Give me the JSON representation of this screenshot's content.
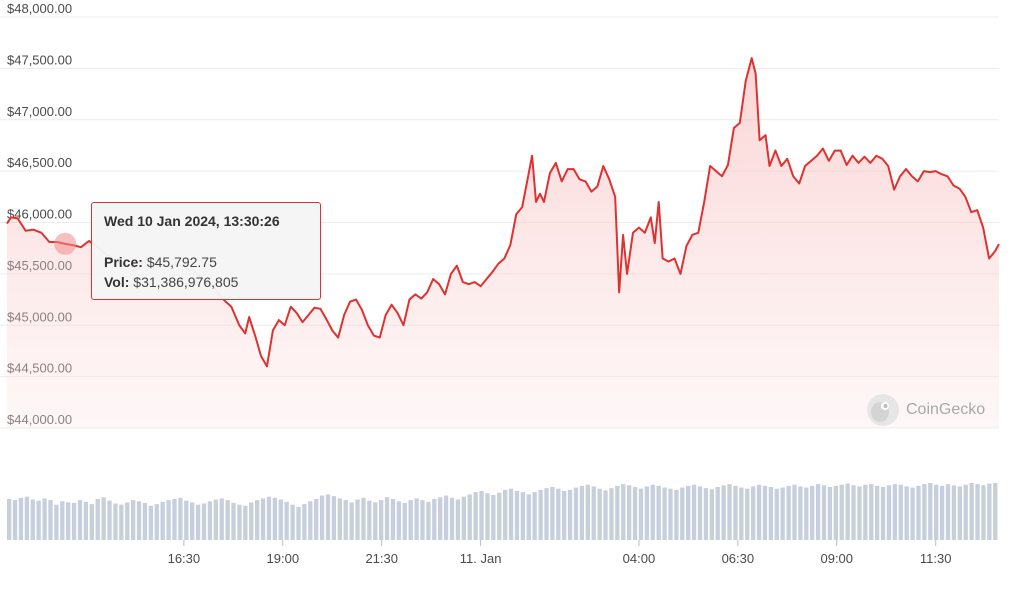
{
  "chart_data": {
    "type": "line",
    "title": "",
    "xlabel": "",
    "ylabel": "",
    "ylim": [
      44000,
      48000
    ],
    "y_ticks": [
      "$48,000.00",
      "$47,500.00",
      "$47,000.00",
      "$46,500.00",
      "$46,000.00",
      "$45,500.00",
      "$45,000.00",
      "$44,500.00",
      "$44,000.00"
    ],
    "y_tick_values": [
      48000,
      47500,
      47000,
      46500,
      46000,
      45500,
      45000,
      44500,
      44000
    ],
    "x_ticks": [
      "16:30",
      "19:00",
      "21:30",
      "11. Jan",
      "04:00",
      "06:30",
      "09:00",
      "11:30"
    ],
    "x_tick_hours": [
      16.5,
      19.0,
      21.5,
      24.0,
      28.0,
      30.5,
      33.0,
      35.5
    ],
    "x_unit": "hours since 10 Jan 2024 00:00",
    "series": [
      {
        "name": "Price",
        "color": "#e03131",
        "points": [
          [
            12.03,
            45990
          ],
          [
            12.13,
            46050
          ],
          [
            12.3,
            46040
          ],
          [
            12.5,
            45920
          ],
          [
            12.7,
            45930
          ],
          [
            12.9,
            45900
          ],
          [
            13.1,
            45810
          ],
          [
            13.3,
            45810
          ],
          [
            13.5,
            45792
          ],
          [
            13.7,
            45780
          ],
          [
            13.9,
            45760
          ],
          [
            14.1,
            45820
          ],
          [
            14.3,
            45770
          ],
          [
            14.5,
            45700
          ],
          [
            14.7,
            45650
          ],
          [
            14.9,
            45600
          ],
          [
            15.1,
            45580
          ],
          [
            15.3,
            45550
          ],
          [
            15.5,
            45620
          ],
          [
            15.7,
            45560
          ],
          [
            15.9,
            45600
          ],
          [
            16.1,
            45570
          ],
          [
            16.3,
            45600
          ],
          [
            16.5,
            45570
          ],
          [
            16.7,
            45540
          ],
          [
            16.9,
            45480
          ],
          [
            17.1,
            45420
          ],
          [
            17.3,
            45350
          ],
          [
            17.5,
            45250
          ],
          [
            17.7,
            45180
          ],
          [
            17.9,
            45000
          ],
          [
            18.05,
            44920
          ],
          [
            18.15,
            45080
          ],
          [
            18.3,
            44900
          ],
          [
            18.45,
            44700
          ],
          [
            18.6,
            44600
          ],
          [
            18.75,
            44950
          ],
          [
            18.9,
            45050
          ],
          [
            19.05,
            45000
          ],
          [
            19.2,
            45180
          ],
          [
            19.35,
            45120
          ],
          [
            19.5,
            45030
          ],
          [
            19.65,
            45100
          ],
          [
            19.8,
            45170
          ],
          [
            19.95,
            45160
          ],
          [
            20.1,
            45060
          ],
          [
            20.25,
            44950
          ],
          [
            20.4,
            44880
          ],
          [
            20.55,
            45100
          ],
          [
            20.7,
            45230
          ],
          [
            20.85,
            45250
          ],
          [
            21.0,
            45150
          ],
          [
            21.15,
            45000
          ],
          [
            21.3,
            44900
          ],
          [
            21.45,
            44880
          ],
          [
            21.6,
            45100
          ],
          [
            21.75,
            45200
          ],
          [
            21.9,
            45120
          ],
          [
            22.05,
            45000
          ],
          [
            22.2,
            45250
          ],
          [
            22.35,
            45300
          ],
          [
            22.5,
            45260
          ],
          [
            22.65,
            45320
          ],
          [
            22.8,
            45450
          ],
          [
            22.95,
            45400
          ],
          [
            23.1,
            45300
          ],
          [
            23.25,
            45500
          ],
          [
            23.4,
            45580
          ],
          [
            23.55,
            45420
          ],
          [
            23.7,
            45400
          ],
          [
            23.85,
            45420
          ],
          [
            24.0,
            45380
          ],
          [
            24.15,
            45450
          ],
          [
            24.3,
            45520
          ],
          [
            24.45,
            45600
          ],
          [
            24.6,
            45650
          ],
          [
            24.75,
            45780
          ],
          [
            24.9,
            46080
          ],
          [
            25.05,
            46150
          ],
          [
            25.2,
            46450
          ],
          [
            25.3,
            46650
          ],
          [
            25.4,
            46200
          ],
          [
            25.5,
            46280
          ],
          [
            25.6,
            46200
          ],
          [
            25.75,
            46480
          ],
          [
            25.9,
            46580
          ],
          [
            26.05,
            46400
          ],
          [
            26.2,
            46520
          ],
          [
            26.35,
            46520
          ],
          [
            26.5,
            46420
          ],
          [
            26.65,
            46400
          ],
          [
            26.8,
            46300
          ],
          [
            26.95,
            46350
          ],
          [
            27.1,
            46550
          ],
          [
            27.25,
            46420
          ],
          [
            27.4,
            46250
          ],
          [
            27.5,
            45320
          ],
          [
            27.6,
            45880
          ],
          [
            27.7,
            45500
          ],
          [
            27.85,
            45900
          ],
          [
            28.0,
            45950
          ],
          [
            28.15,
            45900
          ],
          [
            28.3,
            46050
          ],
          [
            28.4,
            45800
          ],
          [
            28.5,
            46200
          ],
          [
            28.6,
            45650
          ],
          [
            28.75,
            45620
          ],
          [
            28.9,
            45650
          ],
          [
            29.05,
            45500
          ],
          [
            29.2,
            45770
          ],
          [
            29.35,
            45880
          ],
          [
            29.5,
            45900
          ],
          [
            29.65,
            46200
          ],
          [
            29.8,
            46550
          ],
          [
            29.95,
            46500
          ],
          [
            30.1,
            46450
          ],
          [
            30.25,
            46560
          ],
          [
            30.4,
            46920
          ],
          [
            30.55,
            46970
          ],
          [
            30.7,
            47380
          ],
          [
            30.85,
            47600
          ],
          [
            30.95,
            47450
          ],
          [
            31.05,
            46800
          ],
          [
            31.2,
            46850
          ],
          [
            31.3,
            46550
          ],
          [
            31.45,
            46700
          ],
          [
            31.6,
            46550
          ],
          [
            31.75,
            46620
          ],
          [
            31.9,
            46450
          ],
          [
            32.05,
            46380
          ],
          [
            32.2,
            46550
          ],
          [
            32.35,
            46600
          ],
          [
            32.5,
            46650
          ],
          [
            32.65,
            46720
          ],
          [
            32.8,
            46600
          ],
          [
            32.95,
            46700
          ],
          [
            33.1,
            46700
          ],
          [
            33.25,
            46560
          ],
          [
            33.4,
            46650
          ],
          [
            33.55,
            46580
          ],
          [
            33.7,
            46640
          ],
          [
            33.85,
            46580
          ],
          [
            34.0,
            46650
          ],
          [
            34.15,
            46620
          ],
          [
            34.3,
            46550
          ],
          [
            34.45,
            46320
          ],
          [
            34.6,
            46450
          ],
          [
            34.75,
            46520
          ],
          [
            34.9,
            46450
          ],
          [
            35.05,
            46400
          ],
          [
            35.2,
            46500
          ],
          [
            35.35,
            46490
          ],
          [
            35.5,
            46500
          ],
          [
            35.65,
            46470
          ],
          [
            35.8,
            46450
          ],
          [
            35.95,
            46360
          ],
          [
            36.1,
            46330
          ],
          [
            36.25,
            46250
          ],
          [
            36.4,
            46100
          ],
          [
            36.55,
            46120
          ],
          [
            36.7,
            45950
          ],
          [
            36.85,
            45650
          ],
          [
            37.0,
            45720
          ],
          [
            37.1,
            45790
          ]
        ]
      }
    ],
    "volume_bars": {
      "color": "#c8cfdc",
      "relative_values": [
        0.72,
        0.7,
        0.74,
        0.76,
        0.71,
        0.69,
        0.73,
        0.7,
        0.62,
        0.68,
        0.66,
        0.65,
        0.7,
        0.67,
        0.63,
        0.72,
        0.75,
        0.69,
        0.64,
        0.62,
        0.66,
        0.7,
        0.68,
        0.65,
        0.6,
        0.63,
        0.67,
        0.7,
        0.72,
        0.74,
        0.69,
        0.66,
        0.62,
        0.64,
        0.68,
        0.71,
        0.73,
        0.7,
        0.65,
        0.62,
        0.6,
        0.66,
        0.7,
        0.73,
        0.76,
        0.74,
        0.71,
        0.67,
        0.62,
        0.58,
        0.63,
        0.68,
        0.72,
        0.78,
        0.8,
        0.77,
        0.73,
        0.7,
        0.66,
        0.71,
        0.74,
        0.69,
        0.66,
        0.7,
        0.75,
        0.72,
        0.68,
        0.65,
        0.7,
        0.73,
        0.7,
        0.67,
        0.72,
        0.75,
        0.78,
        0.74,
        0.71,
        0.76,
        0.8,
        0.84,
        0.86,
        0.82,
        0.79,
        0.83,
        0.88,
        0.9,
        0.86,
        0.84,
        0.8,
        0.84,
        0.88,
        0.91,
        0.93,
        0.9,
        0.86,
        0.88,
        0.92,
        0.95,
        0.97,
        0.94,
        0.9,
        0.87,
        0.91,
        0.95,
        0.98,
        0.96,
        0.93,
        0.9,
        0.94,
        0.97,
        0.95,
        0.92,
        0.9,
        0.88,
        0.92,
        0.95,
        0.97,
        0.94,
        0.91,
        0.89,
        0.93,
        0.96,
        0.98,
        0.95,
        0.92,
        0.9,
        0.94,
        0.97,
        0.95,
        0.93,
        0.9,
        0.92,
        0.95,
        0.97,
        0.94,
        0.92,
        0.95,
        0.98,
        0.96,
        0.93,
        0.95,
        0.97,
        0.99,
        0.96,
        0.94,
        0.97,
        0.98,
        0.95,
        0.93,
        0.96,
        0.98,
        0.97,
        0.94,
        0.92,
        0.95,
        0.98,
        1.0,
        0.97,
        0.95,
        0.98,
        0.96,
        0.94,
        0.97,
        1.0,
        0.98,
        0.96,
        0.99,
        1.0
      ]
    },
    "grid": true,
    "legend": "none",
    "highlight": {
      "x_hours": 13.5,
      "y": 45792.75
    }
  },
  "tooltip": {
    "date": "Wed 10 Jan 2024, 13:30:26",
    "price_label": "Price:",
    "price_value": "$45,792.75",
    "vol_label": "Vol:",
    "vol_value": "$31,386,976,805"
  },
  "watermark": {
    "text": "CoinGecko",
    "icon": "gecko-logo-icon"
  }
}
